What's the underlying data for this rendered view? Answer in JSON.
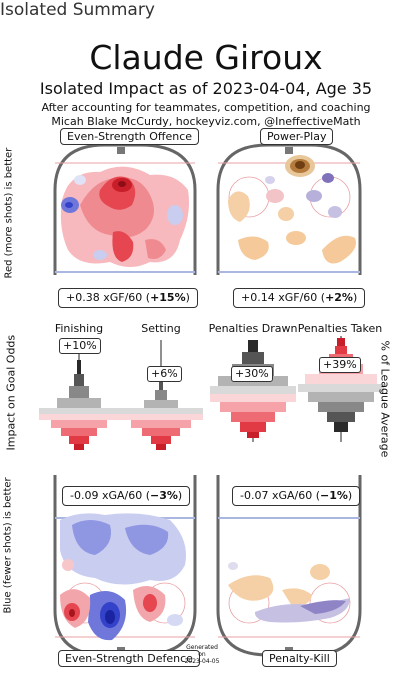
{
  "page_label": "Isolated Summary",
  "player": "Claude Giroux",
  "subtitle": "Isolated Impact as of 2023-04-04, Age 35",
  "credit_line1": "After accounting for teammates, competition, and coaching",
  "credit_line2": "Micah Blake McCurdy, hockeyviz.com, @IneffectiveMath",
  "generated": [
    "Generated",
    "on",
    "2023-04-05"
  ],
  "colors": {
    "red": "#e8303a",
    "blue": "#3846d6",
    "peach": "#f5c99a",
    "purple": "#6b5fa8",
    "rink": "#666666"
  },
  "chart_data": [
    {
      "type": "heatmap",
      "title": "Even-Strength Offence",
      "ylabel": "Red (more shots) is better",
      "stat_parts": [
        "+0.38 xGF/60 (",
        "+15%",
        ")"
      ],
      "value_xgf60": 0.38,
      "value_pct": 15
    },
    {
      "type": "heatmap",
      "title": "Power-Play",
      "stat_parts": [
        "+0.14 xGF/60 (",
        "+2%",
        ")"
      ],
      "value_xgf60": 0.14,
      "value_pct": 2
    },
    {
      "type": "heatmap",
      "title": "Even-Strength Defence",
      "ylabel": "Blue (fewer shots) is better",
      "stat_parts": [
        "-0.09 xGA/60 (",
        "−3%",
        ")"
      ],
      "value_xga60": -0.09,
      "value_pct": -3
    },
    {
      "type": "heatmap",
      "title": "Penalty-Kill",
      "stat_parts": [
        "-0.07 xGA/60 (",
        "−1%",
        ")"
      ],
      "value_xga60": -0.07,
      "value_pct": -1
    },
    {
      "type": "bar",
      "ylabel": "Impact on Goal Odds",
      "categories": [
        "Finishing",
        "Setting"
      ],
      "values_pct": [
        10,
        6
      ],
      "labels": [
        "+10%",
        "+6%"
      ]
    },
    {
      "type": "bar",
      "ylabel": "% of League Average",
      "categories": [
        "Penalties Drawn",
        "Penalties Taken"
      ],
      "values_pct": [
        30,
        39
      ],
      "labels": [
        "+30%",
        "+39%"
      ]
    }
  ]
}
